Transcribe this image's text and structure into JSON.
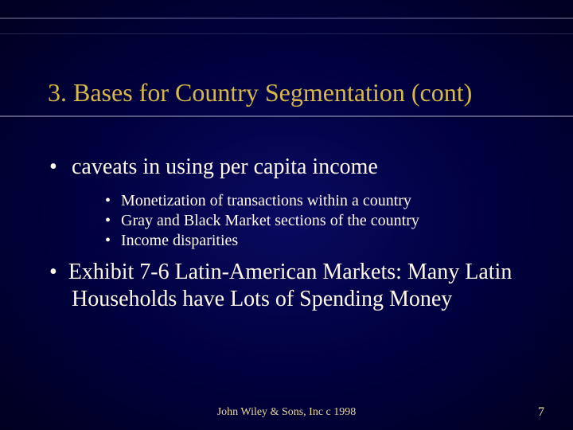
{
  "colors": {
    "background_center": "#0a0a60",
    "background_edge": "#000020",
    "title_color": "#d8b848",
    "text_color": "#fff8e8",
    "rule_color": "#8080a0"
  },
  "typography": {
    "title_fontsize": 32,
    "bullet1_fontsize": 28,
    "bullet2_fontsize": 20,
    "footer_fontsize": 14,
    "font_family": "Times New Roman"
  },
  "title": "3. Bases for Country Segmentation (cont)",
  "bullets": [
    {
      "level": 1,
      "text": "caveats in using per capita income"
    },
    {
      "level": 2,
      "text": "Monetization of transactions within a country"
    },
    {
      "level": 2,
      "text": "Gray and Black Market sections of the country"
    },
    {
      "level": 2,
      "text": "Income disparities"
    },
    {
      "level": 1,
      "text": "Exhibit 7-6 Latin-American Markets: Many Latin Households have Lots of Spending Money"
    }
  ],
  "footer": "John Wiley & Sons, Inc c 1998",
  "page_number": "7"
}
